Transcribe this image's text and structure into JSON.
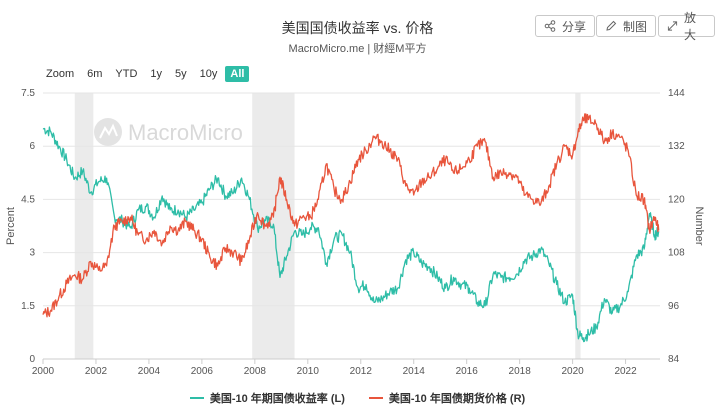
{
  "header": {
    "title": "美国国债收益率 vs. 价格",
    "subtitle": "MacroMicro.me | 财經M平方"
  },
  "toolbar": {
    "share_label": "分享",
    "chart_label": "制图",
    "zoom_label": "放大"
  },
  "range_selector": {
    "label": "Zoom",
    "options": [
      "6m",
      "YTD",
      "1y",
      "5y",
      "10y",
      "All"
    ],
    "active": "All"
  },
  "watermark": "MacroMicro",
  "legend": {
    "yield": "美国-10 年期国债收益率 (L)",
    "price": "美国-10 年国债期货价格 (R)"
  },
  "colors": {
    "yield": "#2ebda7",
    "price": "#e8553c",
    "recession": "#ebebeb"
  },
  "chart_data": {
    "type": "line",
    "x_axis": {
      "range": [
        2000,
        2023.3
      ],
      "ticks": [
        "2000",
        "2002",
        "2004",
        "2006",
        "2008",
        "2010",
        "2012",
        "2014",
        "2016",
        "2018",
        "2020",
        "2022"
      ]
    },
    "y_left": {
      "label": "Percent",
      "range": [
        0,
        7.5
      ],
      "ticks": [
        "0",
        "1.5",
        "3",
        "4.5",
        "6",
        "7.5"
      ]
    },
    "y_right": {
      "label": "Number",
      "range": [
        84,
        144
      ],
      "ticks": [
        "84",
        "96",
        "108",
        "120",
        "132",
        "144"
      ]
    },
    "recession_bands": [
      [
        2001.2,
        2001.9
      ],
      [
        2007.9,
        2009.5
      ],
      [
        2020.1,
        2020.3
      ]
    ],
    "series": [
      {
        "name": "美国-10 年期国债收益率 (L)",
        "axis": "left",
        "x": [
          2000.0,
          2000.3,
          2000.6,
          2000.9,
          2001.2,
          2001.5,
          2001.8,
          2002.1,
          2002.4,
          2002.7,
          2003.0,
          2003.3,
          2003.6,
          2003.9,
          2004.2,
          2004.5,
          2004.8,
          2005.1,
          2005.4,
          2005.7,
          2006.0,
          2006.3,
          2006.6,
          2006.9,
          2007.2,
          2007.5,
          2007.8,
          2008.1,
          2008.4,
          2008.7,
          2008.95,
          2009.2,
          2009.5,
          2009.8,
          2010.1,
          2010.4,
          2010.7,
          2011.0,
          2011.3,
          2011.6,
          2011.9,
          2012.2,
          2012.5,
          2012.8,
          2013.1,
          2013.4,
          2013.7,
          2014.0,
          2014.3,
          2014.6,
          2014.9,
          2015.2,
          2015.5,
          2015.8,
          2016.1,
          2016.4,
          2016.7,
          2017.0,
          2017.3,
          2017.6,
          2017.9,
          2018.2,
          2018.5,
          2018.8,
          2019.1,
          2019.4,
          2019.7,
          2020.0,
          2020.2,
          2020.4,
          2020.6,
          2020.9,
          2021.2,
          2021.5,
          2021.8,
          2022.1,
          2022.4,
          2022.7,
          2022.9,
          2023.1,
          2023.25
        ],
        "values": [
          6.5,
          6.4,
          6.0,
          5.6,
          5.1,
          5.3,
          4.7,
          5.0,
          5.1,
          4.0,
          3.9,
          3.7,
          4.2,
          4.3,
          4.0,
          4.6,
          4.2,
          4.2,
          4.0,
          4.2,
          4.4,
          4.8,
          5.1,
          4.6,
          4.7,
          5.1,
          4.5,
          3.7,
          3.9,
          3.8,
          2.3,
          2.9,
          3.6,
          3.5,
          3.7,
          3.7,
          2.7,
          3.4,
          3.5,
          3.0,
          2.0,
          2.1,
          1.6,
          1.7,
          1.9,
          2.0,
          2.8,
          3.0,
          2.7,
          2.6,
          2.3,
          2.0,
          2.3,
          2.1,
          2.0,
          1.6,
          1.5,
          2.4,
          2.3,
          2.3,
          2.4,
          2.8,
          2.9,
          3.1,
          2.7,
          2.1,
          1.6,
          1.8,
          0.7,
          0.6,
          0.7,
          0.9,
          1.7,
          1.3,
          1.5,
          1.9,
          2.9,
          3.1,
          4.1,
          3.5,
          3.6
        ]
      },
      {
        "name": "美国-10 年国债期货价格 (R)",
        "axis": "right",
        "x": [
          2000.0,
          2000.3,
          2000.6,
          2000.9,
          2001.2,
          2001.5,
          2001.8,
          2002.1,
          2002.4,
          2002.7,
          2003.0,
          2003.3,
          2003.6,
          2003.9,
          2004.2,
          2004.5,
          2004.8,
          2005.1,
          2005.4,
          2005.7,
          2006.0,
          2006.3,
          2006.6,
          2006.9,
          2007.2,
          2007.5,
          2007.8,
          2008.1,
          2008.4,
          2008.7,
          2008.95,
          2009.2,
          2009.5,
          2009.8,
          2010.1,
          2010.4,
          2010.7,
          2011.0,
          2011.3,
          2011.6,
          2011.9,
          2012.2,
          2012.5,
          2012.8,
          2013.1,
          2013.4,
          2013.7,
          2014.0,
          2014.3,
          2014.6,
          2014.9,
          2015.2,
          2015.5,
          2015.8,
          2016.1,
          2016.4,
          2016.7,
          2017.0,
          2017.3,
          2017.6,
          2017.9,
          2018.2,
          2018.5,
          2018.8,
          2019.1,
          2019.4,
          2019.7,
          2020.0,
          2020.2,
          2020.4,
          2020.6,
          2020.9,
          2021.2,
          2021.5,
          2021.8,
          2022.1,
          2022.4,
          2022.7,
          2022.9,
          2023.1,
          2023.25
        ],
        "values": [
          94,
          95,
          98,
          101,
          103,
          102,
          106,
          104,
          105,
          114,
          115,
          116,
          112,
          111,
          113,
          110,
          114,
          113,
          115,
          113,
          111,
          107,
          105,
          109,
          108,
          106,
          111,
          117,
          114,
          116,
          125,
          120,
          114,
          116,
          116,
          120,
          128,
          122,
          120,
          124,
          129,
          131,
          134,
          133,
          131,
          129,
          123,
          121,
          124,
          125,
          127,
          129,
          126,
          127,
          129,
          132,
          133,
          125,
          126,
          126,
          125,
          121,
          120,
          119,
          123,
          128,
          132,
          130,
          135,
          138,
          138,
          137,
          133,
          135,
          134,
          131,
          121,
          120,
          113,
          116,
          113
        ]
      }
    ]
  }
}
